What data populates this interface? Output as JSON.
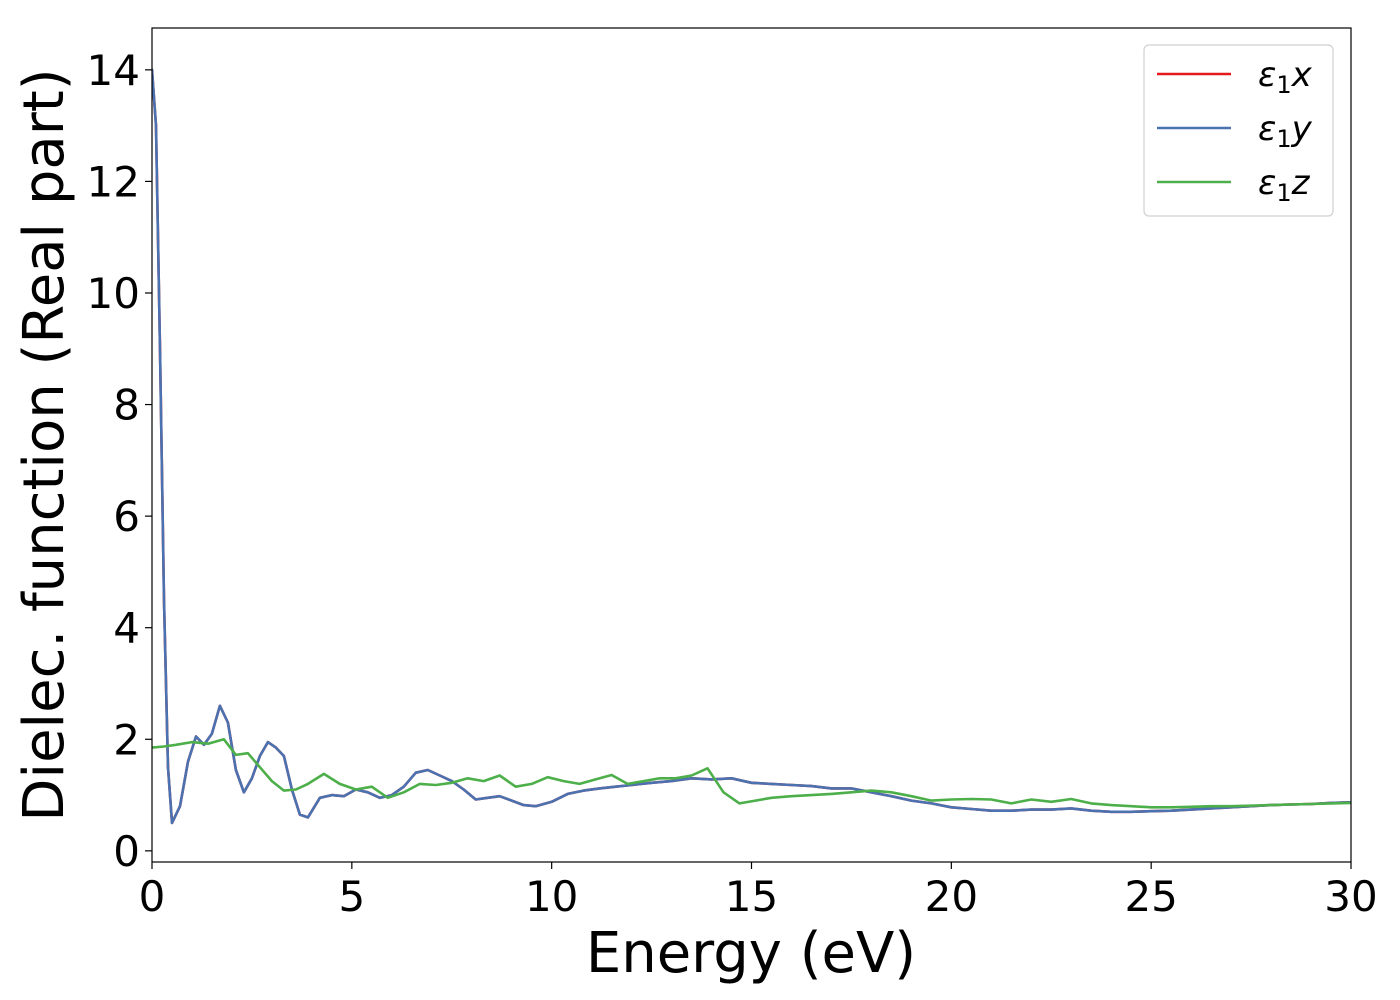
{
  "chart_data": {
    "type": "line",
    "xlabel": "Energy (eV)",
    "ylabel": "Dielec. function (Real part)",
    "xlim": [
      0,
      30
    ],
    "ylim": [
      -0.2,
      14.75
    ],
    "xticks": [
      0,
      5,
      10,
      15,
      20,
      25,
      30
    ],
    "yticks": [
      0,
      2,
      4,
      6,
      8,
      10,
      12,
      14
    ],
    "grid": false,
    "legend_position": "top-right",
    "series": [
      {
        "name": "ε₁x",
        "legend_main": "ε",
        "legend_sub": "1",
        "legend_tail": "x",
        "color": "#e41a1c",
        "x": [
          0,
          0.1,
          0.2,
          0.3,
          0.4,
          0.5,
          0.7,
          0.9,
          1.1,
          1.3,
          1.5,
          1.7,
          1.9,
          2.1,
          2.3,
          2.5,
          2.7,
          2.9,
          3.1,
          3.3,
          3.5,
          3.7,
          3.9,
          4.2,
          4.5,
          4.8,
          5.1,
          5.4,
          5.7,
          6.0,
          6.3,
          6.6,
          6.9,
          7.2,
          7.5,
          7.8,
          8.1,
          8.4,
          8.7,
          9.0,
          9.3,
          9.6,
          10.0,
          10.4,
          10.8,
          11.2,
          11.6,
          12.0,
          12.5,
          13.0,
          13.5,
          14.0,
          14.5,
          15.0,
          15.5,
          16.0,
          16.5,
          17.0,
          17.5,
          18.0,
          18.5,
          19.0,
          19.5,
          20.0,
          20.5,
          21.0,
          21.5,
          22.0,
          22.5,
          23.0,
          23.5,
          24.0,
          24.5,
          25.0,
          25.5,
          26.0,
          26.5,
          27.0,
          27.5,
          28.0,
          28.5,
          29.0,
          29.5,
          30.0
        ],
        "y": [
          14.0,
          13.0,
          9.0,
          4.5,
          1.5,
          0.5,
          0.8,
          1.6,
          2.05,
          1.9,
          2.1,
          2.6,
          2.3,
          1.45,
          1.05,
          1.3,
          1.7,
          1.95,
          1.85,
          1.7,
          1.1,
          0.65,
          0.6,
          0.95,
          1.0,
          0.98,
          1.1,
          1.05,
          0.95,
          1.0,
          1.15,
          1.4,
          1.45,
          1.35,
          1.25,
          1.1,
          0.92,
          0.95,
          0.98,
          0.9,
          0.82,
          0.8,
          0.88,
          1.02,
          1.08,
          1.12,
          1.15,
          1.18,
          1.22,
          1.25,
          1.3,
          1.28,
          1.3,
          1.22,
          1.2,
          1.18,
          1.16,
          1.12,
          1.12,
          1.05,
          0.98,
          0.9,
          0.85,
          0.78,
          0.75,
          0.72,
          0.72,
          0.74,
          0.74,
          0.76,
          0.72,
          0.7,
          0.7,
          0.71,
          0.72,
          0.74,
          0.76,
          0.78,
          0.8,
          0.82,
          0.83,
          0.84,
          0.86,
          0.87
        ]
      },
      {
        "name": "ε₁y",
        "legend_main": "ε",
        "legend_sub": "1",
        "legend_tail": "y",
        "color": "#4a72b0",
        "x": [
          0,
          0.1,
          0.2,
          0.3,
          0.4,
          0.5,
          0.7,
          0.9,
          1.1,
          1.3,
          1.5,
          1.7,
          1.9,
          2.1,
          2.3,
          2.5,
          2.7,
          2.9,
          3.1,
          3.3,
          3.5,
          3.7,
          3.9,
          4.2,
          4.5,
          4.8,
          5.1,
          5.4,
          5.7,
          6.0,
          6.3,
          6.6,
          6.9,
          7.2,
          7.5,
          7.8,
          8.1,
          8.4,
          8.7,
          9.0,
          9.3,
          9.6,
          10.0,
          10.4,
          10.8,
          11.2,
          11.6,
          12.0,
          12.5,
          13.0,
          13.5,
          14.0,
          14.5,
          15.0,
          15.5,
          16.0,
          16.5,
          17.0,
          17.5,
          18.0,
          18.5,
          19.0,
          19.5,
          20.0,
          20.5,
          21.0,
          21.5,
          22.0,
          22.5,
          23.0,
          23.5,
          24.0,
          24.5,
          25.0,
          25.5,
          26.0,
          26.5,
          27.0,
          27.5,
          28.0,
          28.5,
          29.0,
          29.5,
          30.0
        ],
        "y": [
          14.0,
          13.0,
          9.0,
          4.5,
          1.5,
          0.5,
          0.8,
          1.6,
          2.05,
          1.9,
          2.1,
          2.6,
          2.3,
          1.45,
          1.05,
          1.3,
          1.7,
          1.95,
          1.85,
          1.7,
          1.1,
          0.65,
          0.6,
          0.95,
          1.0,
          0.98,
          1.1,
          1.05,
          0.95,
          1.0,
          1.15,
          1.4,
          1.45,
          1.35,
          1.25,
          1.1,
          0.92,
          0.95,
          0.98,
          0.9,
          0.82,
          0.8,
          0.88,
          1.02,
          1.08,
          1.12,
          1.15,
          1.18,
          1.22,
          1.25,
          1.3,
          1.28,
          1.3,
          1.22,
          1.2,
          1.18,
          1.16,
          1.12,
          1.12,
          1.05,
          0.98,
          0.9,
          0.85,
          0.78,
          0.75,
          0.72,
          0.72,
          0.74,
          0.74,
          0.76,
          0.72,
          0.7,
          0.7,
          0.71,
          0.72,
          0.74,
          0.76,
          0.78,
          0.8,
          0.82,
          0.83,
          0.84,
          0.86,
          0.87
        ]
      },
      {
        "name": "ε₁z",
        "legend_main": "ε",
        "legend_sub": "1",
        "legend_tail": "z",
        "color": "#4daf4a",
        "x": [
          0,
          0.3,
          0.6,
          1.0,
          1.4,
          1.8,
          2.1,
          2.4,
          2.7,
          3.0,
          3.3,
          3.6,
          3.9,
          4.3,
          4.7,
          5.1,
          5.5,
          5.9,
          6.3,
          6.7,
          7.1,
          7.5,
          7.9,
          8.3,
          8.7,
          9.1,
          9.5,
          9.9,
          10.3,
          10.7,
          11.1,
          11.5,
          11.9,
          12.3,
          12.7,
          13.1,
          13.5,
          13.9,
          14.3,
          14.7,
          15.1,
          15.5,
          16.0,
          16.5,
          17.0,
          17.5,
          18.0,
          18.5,
          19.0,
          19.5,
          20.0,
          20.5,
          21.0,
          21.5,
          22.0,
          22.5,
          23.0,
          23.5,
          24.0,
          24.5,
          25.0,
          25.5,
          26.0,
          26.5,
          27.0,
          27.5,
          28.0,
          28.5,
          29.0,
          29.5,
          30.0
        ],
        "y": [
          1.85,
          1.87,
          1.9,
          1.95,
          1.92,
          2.0,
          1.72,
          1.75,
          1.5,
          1.25,
          1.08,
          1.1,
          1.2,
          1.38,
          1.2,
          1.1,
          1.15,
          0.95,
          1.05,
          1.2,
          1.18,
          1.22,
          1.3,
          1.25,
          1.35,
          1.15,
          1.2,
          1.32,
          1.25,
          1.2,
          1.28,
          1.36,
          1.2,
          1.25,
          1.3,
          1.3,
          1.35,
          1.48,
          1.05,
          0.85,
          0.9,
          0.95,
          0.98,
          1.0,
          1.02,
          1.05,
          1.08,
          1.05,
          0.98,
          0.9,
          0.92,
          0.93,
          0.92,
          0.85,
          0.92,
          0.88,
          0.93,
          0.85,
          0.82,
          0.8,
          0.78,
          0.78,
          0.79,
          0.8,
          0.8,
          0.81,
          0.82,
          0.83,
          0.84,
          0.85,
          0.86
        ]
      }
    ]
  }
}
